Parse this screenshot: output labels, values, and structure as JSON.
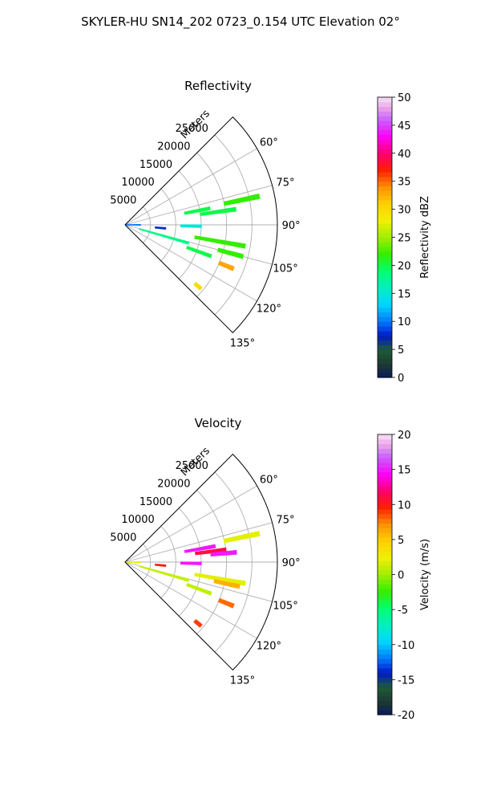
{
  "figure": {
    "title": "SKYLER-HU  SN14_202  0723_0.154 UTC Elevation 02°"
  },
  "chart_data": [
    {
      "type": "heatmap",
      "subtype": "polar-sector-radar-ppi",
      "title": "Reflectivity",
      "radial_axis_label": "Meters",
      "radial_range": [
        0,
        30000
      ],
      "radial_ticks": [
        5000,
        10000,
        15000,
        20000,
        25000
      ],
      "azimuth_range_deg": [
        45,
        135
      ],
      "azimuth_ticks_deg": [
        60,
        75,
        90,
        105,
        120,
        135
      ],
      "grid": true,
      "colorbar": {
        "label": "Reflectivity dBZ",
        "range": [
          0,
          50
        ],
        "ticks": [
          0,
          5,
          10,
          15,
          20,
          25,
          30,
          35,
          40,
          45,
          50
        ]
      },
      "features": [
        {
          "az_deg": 79,
          "range_m": [
            12000,
            17000
          ],
          "value": 20
        },
        {
          "az_deg": 82,
          "range_m": [
            15000,
            22000
          ],
          "value": 20
        },
        {
          "az_deg": 91,
          "range_m": [
            11000,
            15000
          ],
          "value": 15
        },
        {
          "az_deg": 95,
          "range_m": [
            6000,
            8000
          ],
          "value": 8
        },
        {
          "az_deg": 100,
          "range_m": [
            14000,
            24000
          ],
          "value": 22
        },
        {
          "az_deg": 78,
          "range_m": [
            20000,
            27000
          ],
          "value": 22
        },
        {
          "az_deg": 106,
          "range_m": [
            3000,
            13000
          ],
          "value": 18
        },
        {
          "az_deg": 110,
          "range_m": [
            13000,
            18000
          ],
          "value": 20
        },
        {
          "az_deg": 105,
          "range_m": [
            19000,
            24000
          ],
          "value": 22
        },
        {
          "az_deg": 112,
          "range_m": [
            20000,
            23000
          ],
          "value": 33
        },
        {
          "az_deg": 130,
          "range_m": [
            18000,
            19500
          ],
          "value": 30
        },
        {
          "az_deg": 90,
          "range_m": [
            0,
            3000
          ],
          "value": 10
        }
      ]
    },
    {
      "type": "heatmap",
      "subtype": "polar-sector-radar-ppi",
      "title": "Velocity",
      "radial_axis_label": "Meters",
      "radial_range": [
        0,
        30000
      ],
      "radial_ticks": [
        5000,
        10000,
        15000,
        20000,
        25000
      ],
      "azimuth_range_deg": [
        45,
        135
      ],
      "azimuth_ticks_deg": [
        60,
        75,
        90,
        105,
        120,
        135
      ],
      "grid": true,
      "colorbar": {
        "label": "Velocity (m/s)",
        "range": [
          -20,
          20
        ],
        "ticks": [
          -20,
          -15,
          -10,
          -5,
          0,
          5,
          10,
          15,
          20
        ]
      },
      "features": [
        {
          "az_deg": 80,
          "range_m": [
            12000,
            18000
          ],
          "value": 15
        },
        {
          "az_deg": 83,
          "range_m": [
            14000,
            20000
          ],
          "value": 11
        },
        {
          "az_deg": 85,
          "range_m": [
            17000,
            22000
          ],
          "value": 15
        },
        {
          "az_deg": 91,
          "range_m": [
            11000,
            15000
          ],
          "value": 15
        },
        {
          "az_deg": 95,
          "range_m": [
            6000,
            8000
          ],
          "value": 10
        },
        {
          "az_deg": 100,
          "range_m": [
            14000,
            24000
          ],
          "value": 2
        },
        {
          "az_deg": 78,
          "range_m": [
            20000,
            27000
          ],
          "value": 2
        },
        {
          "az_deg": 106,
          "range_m": [
            3000,
            13000
          ],
          "value": 1
        },
        {
          "az_deg": 110,
          "range_m": [
            13000,
            18000
          ],
          "value": 1
        },
        {
          "az_deg": 102,
          "range_m": [
            18000,
            23000
          ],
          "value": 6
        },
        {
          "az_deg": 112,
          "range_m": [
            20000,
            23000
          ],
          "value": 8
        },
        {
          "az_deg": 130,
          "range_m": [
            18000,
            19500
          ],
          "value": 9
        },
        {
          "az_deg": 90,
          "range_m": [
            0,
            3000
          ],
          "value": 2
        }
      ]
    }
  ]
}
